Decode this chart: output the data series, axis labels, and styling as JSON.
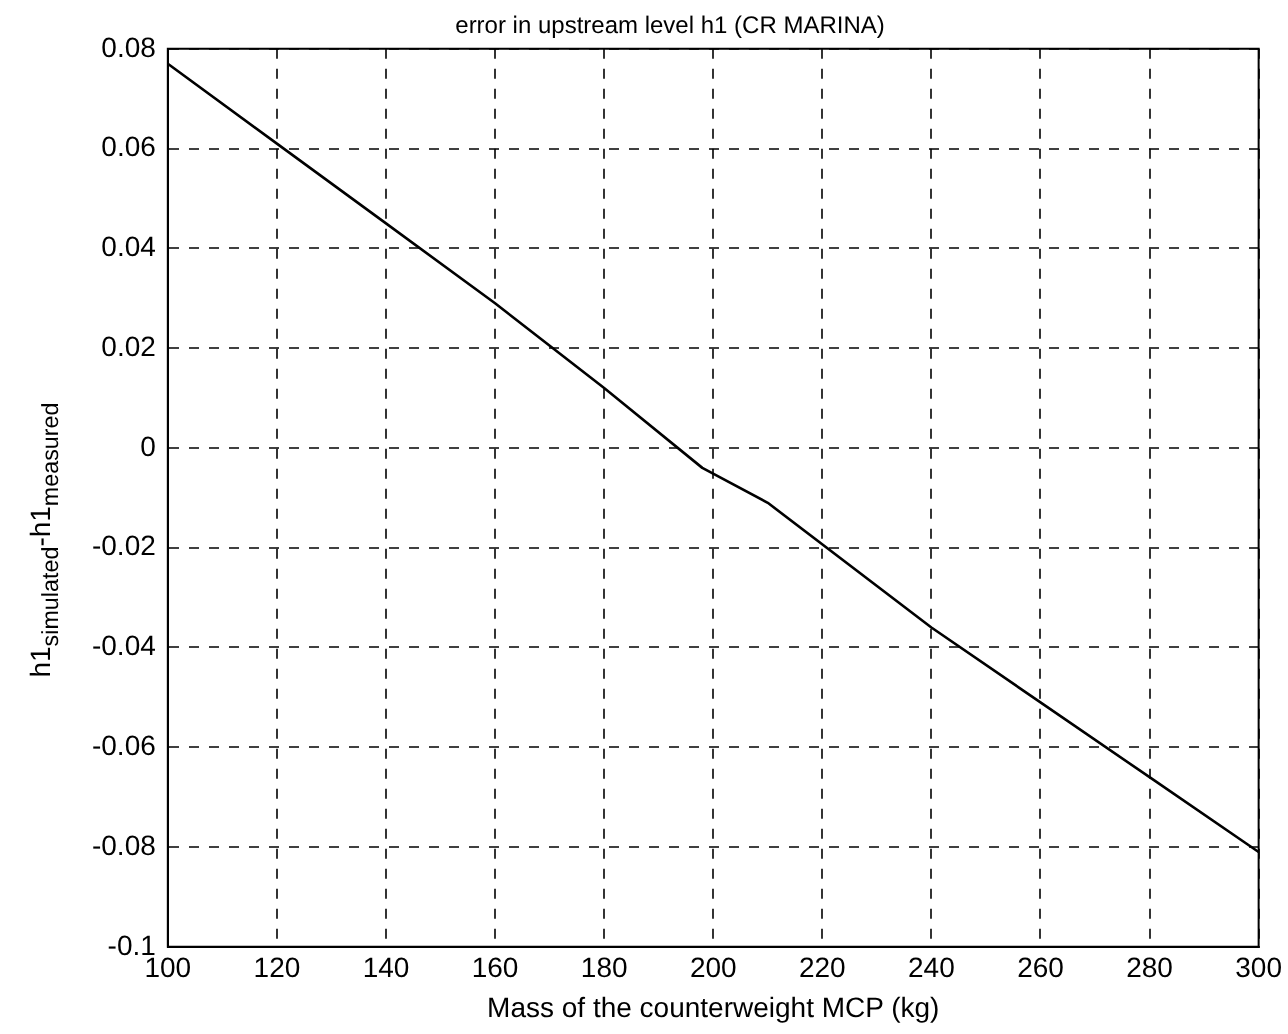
{
  "chart_data": {
    "type": "line",
    "title": "error in upstream level h1 (CR MARINA)",
    "xlabel": "Mass of the counterweight MCP (kg)",
    "ylabel": "h1$_{simulated}$-h1$_{measured}$",
    "x": [
      100,
      120,
      140,
      160,
      180,
      198,
      210,
      240,
      260,
      280,
      300
    ],
    "series": [
      {
        "color": "#000000",
        "values": [
          0.077,
          0.061,
          0.045,
          0.029,
          0.012,
          -0.004,
          -0.011,
          -0.036,
          -0.051,
          -0.066,
          -0.081
        ]
      }
    ],
    "xlim": [
      100,
      300
    ],
    "xticks": [
      100,
      120,
      140,
      160,
      180,
      200,
      220,
      240,
      260,
      280,
      300
    ],
    "ylim": [
      -0.1,
      0.08
    ],
    "yticks": [
      -0.1,
      -0.08,
      -0.06,
      -0.04,
      -0.02,
      0,
      0.02,
      0.04,
      0.06,
      0.08
    ],
    "grid": true,
    "legend": false,
    "marker": "none",
    "line_style": "solid"
  }
}
